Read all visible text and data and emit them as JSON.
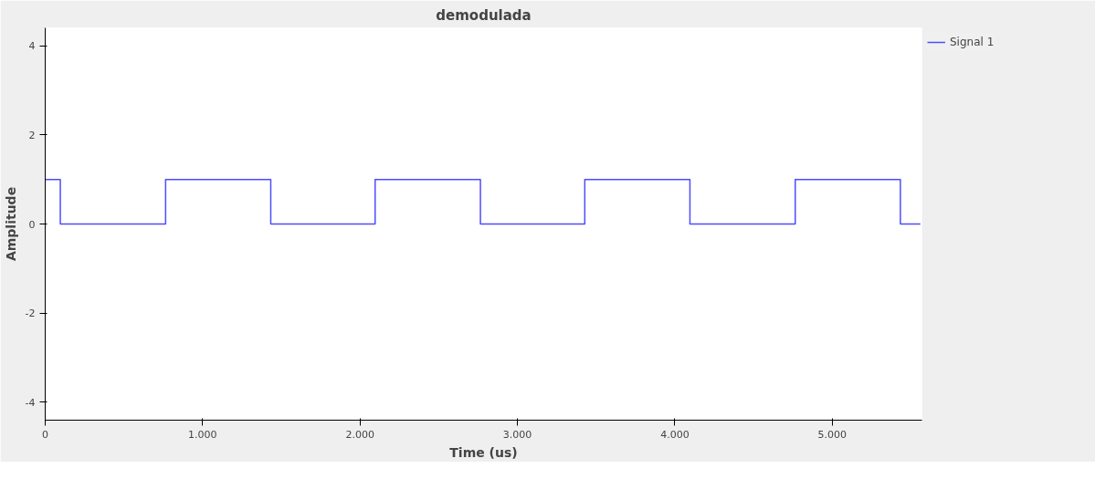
{
  "chart_data": {
    "type": "step",
    "title": "demodulada",
    "xlabel": "Time (us)",
    "ylabel": "Amplitude",
    "x": [
      0,
      96,
      765,
      1433,
      2096,
      2765,
      3428,
      4096,
      4765,
      5433,
      5560
    ],
    "series": [
      {
        "name": "Signal 1",
        "color": "#4d4dff",
        "values": [
          1,
          0,
          1,
          0,
          1,
          0,
          1,
          0,
          1,
          0,
          0
        ]
      }
    ],
    "xlim": [
      0,
      5570
    ],
    "ylim": [
      -4.4,
      4.4
    ],
    "xticks": [
      0,
      {
        "value": 1000,
        "label": "1.000"
      },
      {
        "value": 2000,
        "label": "2.000"
      },
      {
        "value": 3000,
        "label": "3.000"
      },
      {
        "value": 4000,
        "label": "4.000"
      },
      {
        "value": 5000,
        "label": "5.000"
      }
    ],
    "yticks": [
      -4,
      -2,
      0,
      2,
      4
    ],
    "grid": false,
    "legend": "top right",
    "marker": "none",
    "line_style": "solid"
  }
}
